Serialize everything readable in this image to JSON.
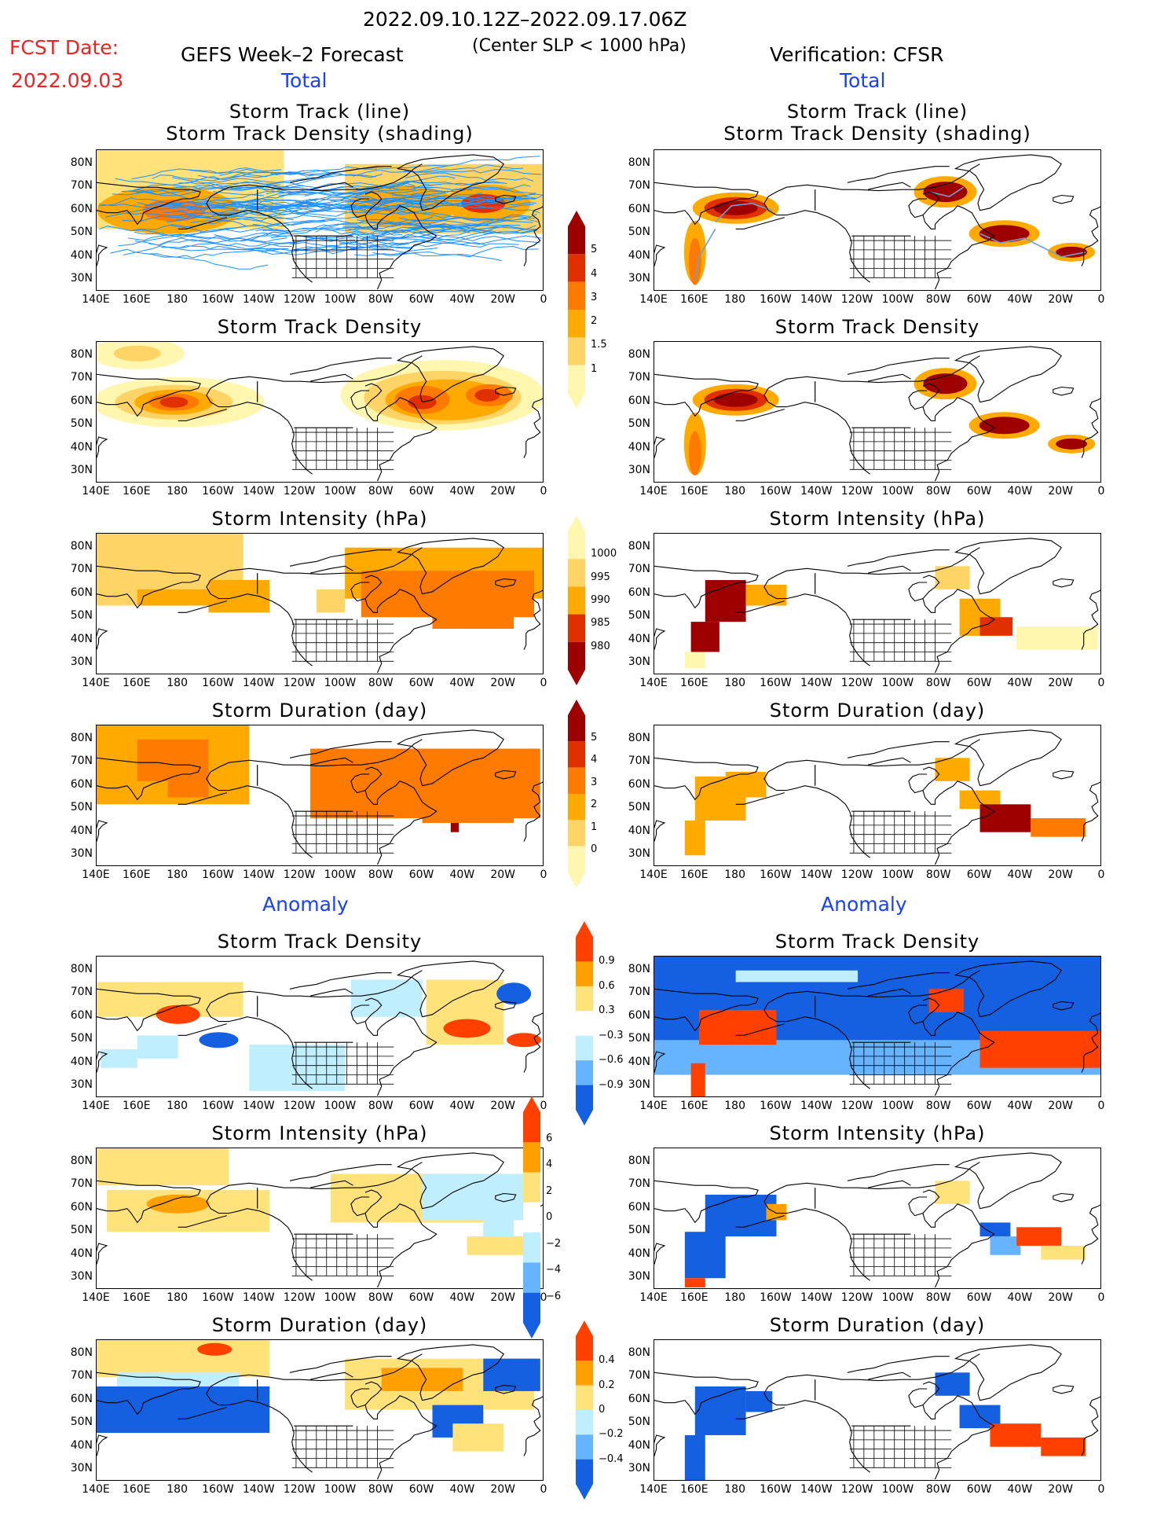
{
  "header": {
    "period": "2022.09.10.12Z–2022.09.17.06Z",
    "fcst_label": "FCST Date:",
    "fcst_date": "2022.09.03",
    "left_title": "GEFS Week–2 Forecast",
    "criteria": "(Center SLP < 1000 hPa)",
    "right_title": "Verification: CFSR",
    "total_left": "Total",
    "total_right": "Total",
    "anomaly_left": "Anomaly",
    "anomaly_right": "Anomaly"
  },
  "panel_titles": {
    "track_line": "Storm Track (line)",
    "track_shading": "Storm Track Density (shading)",
    "density": "Storm Track Density",
    "intensity": "Storm Intensity (hPa)",
    "duration": "Storm Duration (day)"
  },
  "axes": {
    "lat_labels": [
      "80N",
      "70N",
      "60N",
      "50N",
      "40N",
      "30N"
    ],
    "lon_labels": [
      "140E",
      "160E",
      "180",
      "160W",
      "140W",
      "120W",
      "100W",
      "80W",
      "60W",
      "40W",
      "20W",
      "0"
    ]
  },
  "colorbars": {
    "density_total": [
      "5",
      "4",
      "3",
      "2",
      "1.5",
      "1"
    ],
    "intensity_total": [
      "1000",
      "995",
      "990",
      "985",
      "980"
    ],
    "duration_total": [
      "5",
      "4",
      "3",
      "2",
      "1",
      "0"
    ],
    "density_anom": [
      "0.9",
      "0.6",
      "0.3",
      "−0.3",
      "−0.6",
      "−0.9"
    ],
    "intensity_anom": [
      "6",
      "4",
      "2",
      "0",
      "−2",
      "−4",
      "−6"
    ],
    "duration_anom": [
      "0.4",
      "0.2",
      "0",
      "−0.2",
      "−0.4"
    ]
  },
  "colors": {
    "total_scale": [
      "#fff7b0",
      "#ffd466",
      "#ffaa00",
      "#ff7a00",
      "#e03000",
      "#9e0000"
    ],
    "anom_pos": [
      "#ffe27a",
      "#ff9f00",
      "#ff4000"
    ],
    "anom_neg": [
      "#bfeeff",
      "#66b3ff",
      "#1560e0"
    ],
    "track_line": "#1e90ff",
    "track_obs": "#6fa0d0"
  }
}
